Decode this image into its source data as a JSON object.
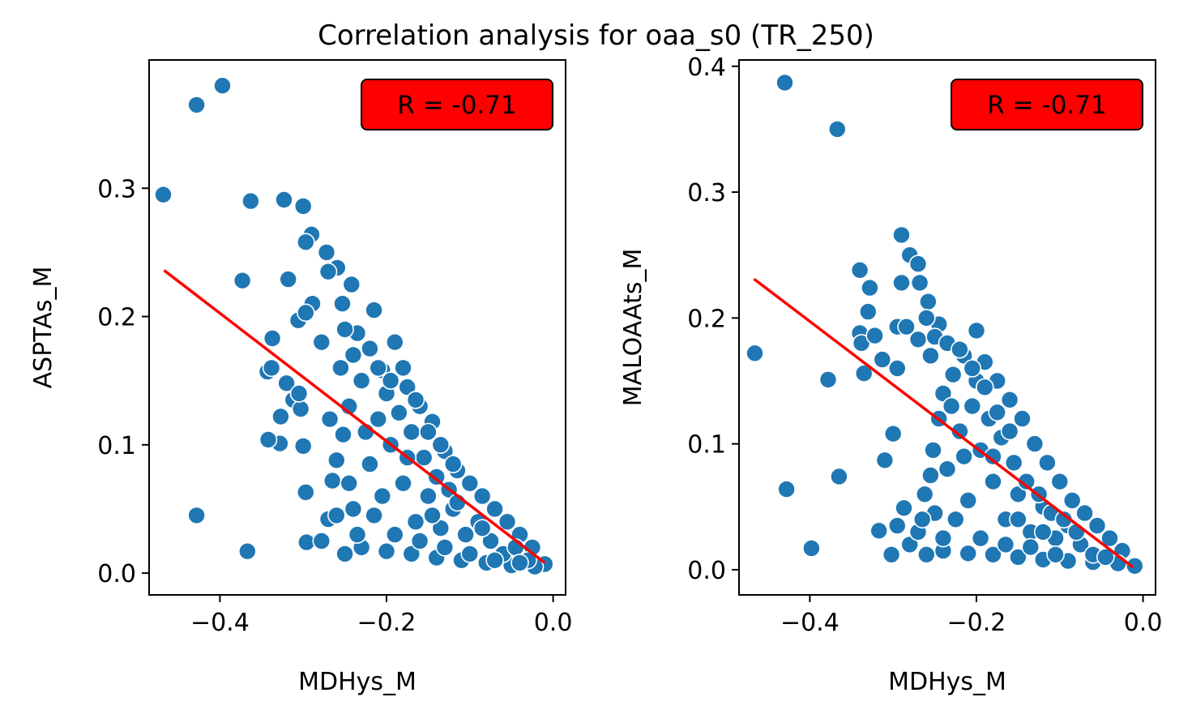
{
  "figure": {
    "title": "Correlation analysis for oaa_s0 (TR_250)"
  },
  "chart_data": [
    {
      "type": "scatter",
      "title": "",
      "xlabel": "MDHys_M",
      "ylabel": "ASPTAs_M",
      "xlim": [
        -0.485,
        0.015
      ],
      "ylim": [
        -0.017,
        0.4
      ],
      "xticks": [
        -0.4,
        -0.2,
        0.0
      ],
      "xtick_labels": [
        "−0.4",
        "−0.2",
        "0.0"
      ],
      "yticks": [
        0.0,
        0.1,
        0.2,
        0.3
      ],
      "ytick_labels": [
        "0.0",
        "0.1",
        "0.2",
        "0.3"
      ],
      "grid": false,
      "annotation": {
        "text": "R = -0.71",
        "color": "#ff0000",
        "placement": "top-right"
      },
      "series": [
        {
          "marker_color": "#1f77b4",
          "points": [
            [
              -0.397,
              0.38
            ],
            [
              -0.428,
              0.365
            ],
            [
              -0.468,
              0.295
            ],
            [
              -0.363,
              0.29
            ],
            [
              -0.323,
              0.291
            ],
            [
              -0.3,
              0.286
            ],
            [
              -0.29,
              0.264
            ],
            [
              -0.297,
              0.258
            ],
            [
              -0.272,
              0.25
            ],
            [
              -0.259,
              0.238
            ],
            [
              -0.373,
              0.228
            ],
            [
              -0.318,
              0.229
            ],
            [
              -0.242,
              0.225
            ],
            [
              -0.253,
              0.21
            ],
            [
              -0.289,
              0.21
            ],
            [
              -0.306,
              0.197
            ],
            [
              -0.297,
              0.203
            ],
            [
              -0.337,
              0.183
            ],
            [
              -0.343,
              0.157
            ],
            [
              -0.338,
              0.16
            ],
            [
              -0.32,
              0.148
            ],
            [
              -0.312,
              0.135
            ],
            [
              -0.303,
              0.128
            ],
            [
              -0.305,
              0.14
            ],
            [
              -0.327,
              0.122
            ],
            [
              -0.328,
              0.101
            ],
            [
              -0.342,
              0.104
            ],
            [
              -0.3,
              0.099
            ],
            [
              -0.297,
              0.063
            ],
            [
              -0.428,
              0.045
            ],
            [
              -0.367,
              0.017
            ],
            [
              -0.296,
              0.024
            ],
            [
              -0.278,
              0.025
            ],
            [
              -0.27,
              0.042
            ],
            [
              -0.265,
              0.072
            ],
            [
              -0.26,
              0.088
            ],
            [
              -0.252,
              0.108
            ],
            [
              -0.268,
              0.12
            ],
            [
              -0.278,
              0.18
            ],
            [
              -0.27,
              0.235
            ],
            [
              -0.235,
              0.187
            ],
            [
              -0.215,
              0.205
            ],
            [
              -0.19,
              0.18
            ],
            [
              -0.205,
              0.158
            ],
            [
              -0.175,
              0.145
            ],
            [
              -0.16,
              0.13
            ],
            [
              -0.145,
              0.118
            ],
            [
              -0.13,
              0.095
            ],
            [
              -0.115,
              0.08
            ],
            [
              -0.1,
              0.07
            ],
            [
              -0.085,
              0.06
            ],
            [
              -0.07,
              0.05
            ],
            [
              -0.055,
              0.04
            ],
            [
              -0.04,
              0.03
            ],
            [
              -0.025,
              0.02
            ],
            [
              -0.01,
              0.007
            ],
            [
              -0.022,
              0.005
            ],
            [
              -0.05,
              0.006
            ],
            [
              -0.08,
              0.008
            ],
            [
              -0.11,
              0.01
            ],
            [
              -0.14,
              0.012
            ],
            [
              -0.17,
              0.015
            ],
            [
              -0.2,
              0.017
            ],
            [
              -0.23,
              0.02
            ],
            [
              -0.25,
              0.015
            ],
            [
              -0.24,
              0.05
            ],
            [
              -0.22,
              0.085
            ],
            [
              -0.21,
              0.12
            ],
            [
              -0.195,
              0.1
            ],
            [
              -0.18,
              0.07
            ],
            [
              -0.165,
              0.04
            ],
            [
              -0.15,
              0.06
            ],
            [
              -0.135,
              0.035
            ],
            [
              -0.12,
              0.05
            ],
            [
              -0.105,
              0.03
            ],
            [
              -0.09,
              0.04
            ],
            [
              -0.075,
              0.025
            ],
            [
              -0.06,
              0.015
            ],
            [
              -0.045,
              0.02
            ],
            [
              -0.03,
              0.01
            ],
            [
              -0.255,
              0.16
            ],
            [
              -0.245,
              0.13
            ],
            [
              -0.23,
              0.15
            ],
            [
              -0.225,
              0.11
            ],
            [
              -0.2,
              0.14
            ],
            [
              -0.185,
              0.125
            ],
            [
              -0.17,
              0.11
            ],
            [
              -0.155,
              0.09
            ],
            [
              -0.14,
              0.075
            ],
            [
              -0.125,
              0.065
            ],
            [
              -0.26,
              0.045
            ],
            [
              -0.245,
              0.07
            ],
            [
              -0.235,
              0.03
            ],
            [
              -0.215,
              0.045
            ],
            [
              -0.205,
              0.06
            ],
            [
              -0.19,
              0.03
            ],
            [
              -0.175,
              0.09
            ],
            [
              -0.16,
              0.025
            ],
            [
              -0.145,
              0.045
            ],
            [
              -0.13,
              0.02
            ],
            [
              -0.115,
              0.055
            ],
            [
              -0.1,
              0.015
            ],
            [
              -0.085,
              0.035
            ],
            [
              -0.07,
              0.01
            ],
            [
              -0.04,
              0.008
            ],
            [
              -0.25,
              0.19
            ],
            [
              -0.24,
              0.17
            ],
            [
              -0.22,
              0.175
            ],
            [
              -0.21,
              0.16
            ],
            [
              -0.195,
              0.15
            ],
            [
              -0.18,
              0.16
            ],
            [
              -0.165,
              0.135
            ],
            [
              -0.15,
              0.11
            ],
            [
              -0.135,
              0.1
            ],
            [
              -0.12,
              0.085
            ]
          ]
        }
      ],
      "fit_line": {
        "color": "#ff0000",
        "x": [
          -0.467,
          -0.01
        ],
        "y": [
          0.236,
          0.008
        ]
      }
    },
    {
      "type": "scatter",
      "title": "",
      "xlabel": "MDHys_M",
      "ylabel": "MALOAAts_M",
      "xlim": [
        -0.485,
        0.015
      ],
      "ylim": [
        -0.02,
        0.405
      ],
      "xticks": [
        -0.4,
        -0.2,
        0.0
      ],
      "xtick_labels": [
        "−0.4",
        "−0.2",
        "0.0"
      ],
      "yticks": [
        0.0,
        0.1,
        0.2,
        0.3,
        0.4
      ],
      "ytick_labels": [
        "0.0",
        "0.1",
        "0.2",
        "0.3",
        "0.4"
      ],
      "grid": false,
      "annotation": {
        "text": "R = -0.71",
        "color": "#ff0000",
        "placement": "top-right"
      },
      "series": [
        {
          "marker_color": "#1f77b4",
          "points": [
            [
              -0.43,
              0.387
            ],
            [
              -0.367,
              0.35
            ],
            [
              -0.29,
              0.266
            ],
            [
              -0.28,
              0.25
            ],
            [
              -0.27,
              0.243
            ],
            [
              -0.268,
              0.228
            ],
            [
              -0.258,
              0.213
            ],
            [
              -0.29,
              0.228
            ],
            [
              -0.34,
              0.238
            ],
            [
              -0.328,
              0.224
            ],
            [
              -0.33,
              0.205
            ],
            [
              -0.295,
              0.193
            ],
            [
              -0.284,
              0.193
            ],
            [
              -0.27,
              0.183
            ],
            [
              -0.245,
              0.195
            ],
            [
              -0.34,
              0.188
            ],
            [
              -0.338,
              0.18
            ],
            [
              -0.322,
              0.186
            ],
            [
              -0.313,
              0.167
            ],
            [
              -0.295,
              0.16
            ],
            [
              -0.335,
              0.156
            ],
            [
              -0.466,
              0.172
            ],
            [
              -0.378,
              0.151
            ],
            [
              -0.3,
              0.108
            ],
            [
              -0.31,
              0.087
            ],
            [
              -0.365,
              0.074
            ],
            [
              -0.428,
              0.064
            ],
            [
              -0.398,
              0.017
            ],
            [
              -0.317,
              0.031
            ],
            [
              -0.302,
              0.012
            ],
            [
              -0.295,
              0.035
            ],
            [
              -0.287,
              0.049
            ],
            [
              -0.28,
              0.02
            ],
            [
              -0.27,
              0.03
            ],
            [
              -0.262,
              0.06
            ],
            [
              -0.252,
              0.095
            ],
            [
              -0.24,
              0.14
            ],
            [
              -0.228,
              0.155
            ],
            [
              -0.215,
              0.17
            ],
            [
              -0.2,
              0.19
            ],
            [
              -0.19,
              0.165
            ],
            [
              -0.175,
              0.15
            ],
            [
              -0.16,
              0.135
            ],
            [
              -0.145,
              0.12
            ],
            [
              -0.13,
              0.1
            ],
            [
              -0.115,
              0.085
            ],
            [
              -0.1,
              0.07
            ],
            [
              -0.085,
              0.055
            ],
            [
              -0.07,
              0.045
            ],
            [
              -0.055,
              0.035
            ],
            [
              -0.04,
              0.025
            ],
            [
              -0.025,
              0.015
            ],
            [
              -0.01,
              0.003
            ],
            [
              -0.03,
              0.005
            ],
            [
              -0.06,
              0.006
            ],
            [
              -0.09,
              0.007
            ],
            [
              -0.12,
              0.008
            ],
            [
              -0.15,
              0.01
            ],
            [
              -0.18,
              0.012
            ],
            [
              -0.21,
              0.013
            ],
            [
              -0.24,
              0.015
            ],
            [
              -0.26,
              0.012
            ],
            [
              -0.25,
              0.045
            ],
            [
              -0.235,
              0.08
            ],
            [
              -0.22,
              0.11
            ],
            [
              -0.205,
              0.13
            ],
            [
              -0.195,
              0.095
            ],
            [
              -0.18,
              0.07
            ],
            [
              -0.165,
              0.04
            ],
            [
              -0.15,
              0.06
            ],
            [
              -0.135,
              0.03
            ],
            [
              -0.12,
              0.05
            ],
            [
              -0.105,
              0.025
            ],
            [
              -0.09,
              0.035
            ],
            [
              -0.075,
              0.02
            ],
            [
              -0.06,
              0.012
            ],
            [
              -0.045,
              0.01
            ],
            [
              -0.255,
              0.17
            ],
            [
              -0.245,
              0.12
            ],
            [
              -0.23,
              0.13
            ],
            [
              -0.215,
              0.09
            ],
            [
              -0.2,
              0.15
            ],
            [
              -0.185,
              0.12
            ],
            [
              -0.17,
              0.105
            ],
            [
              -0.155,
              0.085
            ],
            [
              -0.14,
              0.07
            ],
            [
              -0.125,
              0.06
            ],
            [
              -0.11,
              0.045
            ],
            [
              -0.095,
              0.04
            ],
            [
              -0.08,
              0.03
            ],
            [
              -0.265,
              0.04
            ],
            [
              -0.255,
              0.075
            ],
            [
              -0.24,
              0.025
            ],
            [
              -0.225,
              0.04
            ],
            [
              -0.21,
              0.055
            ],
            [
              -0.195,
              0.025
            ],
            [
              -0.18,
              0.09
            ],
            [
              -0.165,
              0.02
            ],
            [
              -0.15,
              0.04
            ],
            [
              -0.135,
              0.018
            ],
            [
              -0.12,
              0.03
            ],
            [
              -0.105,
              0.012
            ],
            [
              -0.26,
              0.2
            ],
            [
              -0.25,
              0.185
            ],
            [
              -0.235,
              0.18
            ],
            [
              -0.22,
              0.175
            ],
            [
              -0.205,
              0.16
            ],
            [
              -0.19,
              0.145
            ],
            [
              -0.175,
              0.125
            ],
            [
              -0.16,
              0.11
            ]
          ]
        }
      ],
      "fit_line": {
        "color": "#ff0000",
        "x": [
          -0.467,
          -0.012
        ],
        "y": [
          0.231,
          0.002
        ]
      }
    }
  ]
}
